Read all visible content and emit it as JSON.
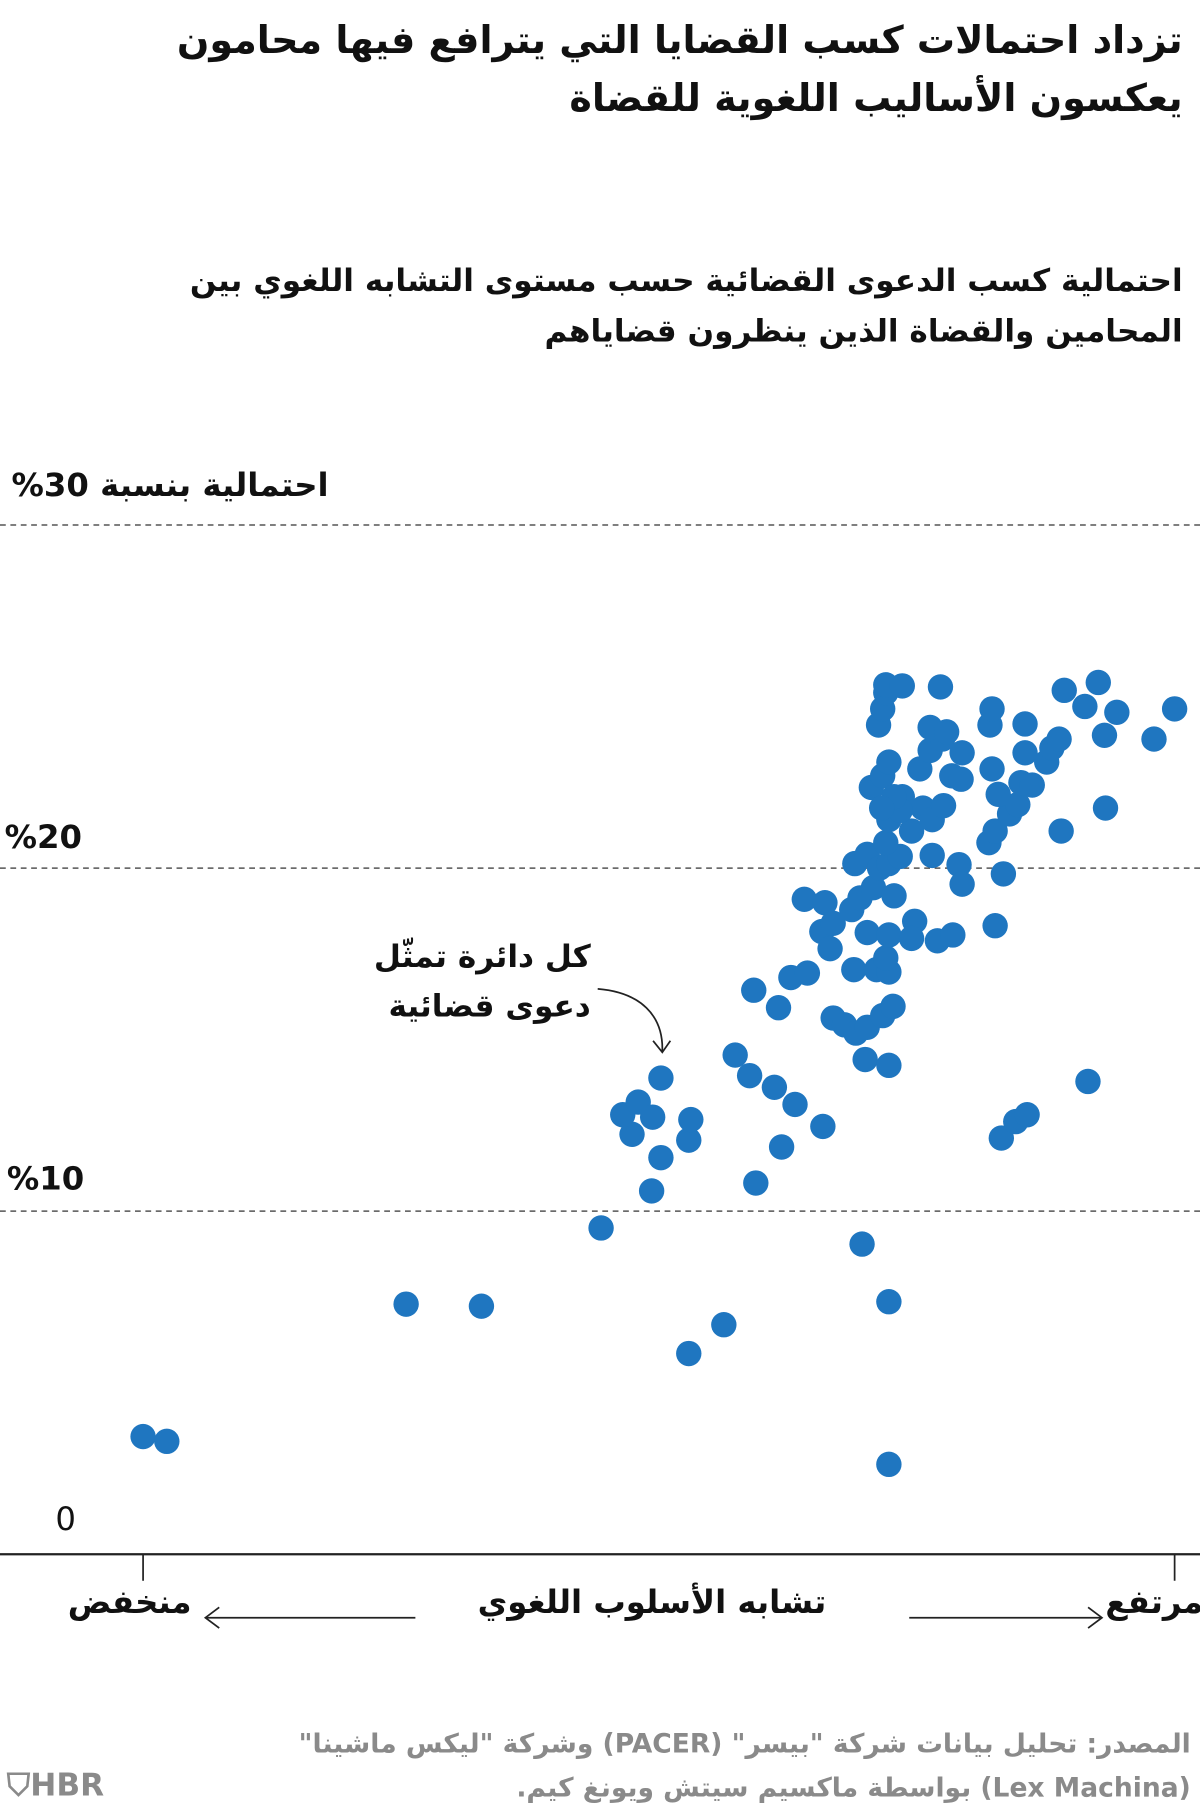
{
  "title": "تزداد احتمالات كسب القضايا التي يترافع فيها محامون يعكسون الأساليب اللغوية للقضاة",
  "subtitle": "احتمالية كسب الدعوى القضائية حسب مستوى التشابه اللغوي بين المحامين والقضاة الذين ينظرون قضاياهم",
  "annotation": {
    "line1": "كل دائرة تمثّل",
    "line2": "دعوى قضائية"
  },
  "source": {
    "line1": "المصدر: تحليل بيانات شركة \"بيسر\" (PACER) وشركة \"ليكس ماشينا\"",
    "line2": "(Lex Machina) بواسطة ماكسيم سيتش ويونغ كيم."
  },
  "logo": "HBR",
  "colors": {
    "dots": "#1f76c0",
    "text": "#111111",
    "source": "#8a8a8a",
    "grid": "#555555"
  },
  "chart_data": {
    "type": "scatter",
    "title": "",
    "ylabel": "احتمالية بنسبة 30%",
    "xlabel": "تشابه الأسلوب اللغوي",
    "x_low_label": "منخفض",
    "x_high_label": "مرتفع",
    "ylim": [
      0,
      30
    ],
    "yticks": [
      {
        "value": 10,
        "label": "%10"
      },
      {
        "value": 20,
        "label": "%20"
      },
      {
        "value": 0,
        "label": "0"
      }
    ],
    "xlim": [
      0,
      100
    ],
    "grid": "horizontal dashed",
    "points": [
      [
        0,
        3.43
      ],
      [
        2.3,
        3.29
      ],
      [
        25.5,
        7.29
      ],
      [
        32.8,
        7.23
      ],
      [
        44.4,
        9.51
      ],
      [
        52.9,
        5.85
      ],
      [
        56.3,
        6.69
      ],
      [
        72.3,
        2.62
      ],
      [
        72.3,
        7.36
      ],
      [
        69.7,
        9.04
      ],
      [
        49.3,
        10.59
      ],
      [
        50.2,
        11.56
      ],
      [
        47.4,
        12.24
      ],
      [
        46.5,
        12.81
      ],
      [
        48.0,
        13.18
      ],
      [
        49.4,
        12.74
      ],
      [
        52.9,
        12.07
      ],
      [
        53.1,
        12.67
      ],
      [
        50.2,
        13.88
      ],
      [
        59.4,
        10.82
      ],
      [
        61.9,
        11.87
      ],
      [
        65.9,
        12.47
      ],
      [
        63.2,
        13.11
      ],
      [
        61.2,
        13.61
      ],
      [
        58.8,
        13.95
      ],
      [
        57.4,
        14.55
      ],
      [
        83.2,
        12.13
      ],
      [
        84.6,
        12.61
      ],
      [
        85.7,
        12.81
      ],
      [
        91.6,
        13.78
      ],
      [
        59.2,
        16.44
      ],
      [
        61.6,
        15.93
      ],
      [
        62.8,
        16.81
      ],
      [
        64.4,
        16.94
      ],
      [
        66.9,
        15.63
      ],
      [
        68.0,
        15.43
      ],
      [
        69.1,
        15.19
      ],
      [
        70.2,
        15.36
      ],
      [
        71.7,
        15.7
      ],
      [
        72.7,
        15.97
      ],
      [
        70.0,
        14.42
      ],
      [
        72.3,
        14.25
      ],
      [
        64.1,
        19.09
      ],
      [
        66.1,
        18.99
      ],
      [
        65.8,
        18.15
      ],
      [
        66.6,
        17.65
      ],
      [
        66.9,
        18.39
      ],
      [
        68.9,
        17.04
      ],
      [
        71.1,
        17.04
      ],
      [
        72.3,
        16.97
      ],
      [
        72.0,
        17.38
      ],
      [
        68.7,
        18.79
      ],
      [
        69.5,
        19.13
      ],
      [
        70.8,
        19.43
      ],
      [
        70.2,
        18.12
      ],
      [
        72.3,
        18.05
      ],
      [
        72.8,
        19.19
      ],
      [
        74.8,
        18.45
      ],
      [
        74.5,
        17.95
      ],
      [
        77.0,
        17.88
      ],
      [
        78.5,
        18.05
      ],
      [
        82.6,
        18.32
      ],
      [
        69.0,
        20.13
      ],
      [
        70.2,
        20.4
      ],
      [
        71.4,
        20.0
      ],
      [
        72.3,
        20.13
      ],
      [
        73.4,
        20.34
      ],
      [
        72.0,
        20.74
      ],
      [
        74.5,
        21.08
      ],
      [
        76.5,
        20.37
      ],
      [
        79.1,
        20.1
      ],
      [
        79.4,
        19.53
      ],
      [
        83.4,
        19.83
      ],
      [
        82.0,
        20.74
      ],
      [
        82.6,
        21.08
      ],
      [
        84.0,
        21.58
      ],
      [
        84.8,
        21.85
      ],
      [
        89.0,
        21.08
      ],
      [
        93.3,
        21.75
      ],
      [
        70.6,
        22.35
      ],
      [
        71.7,
        22.69
      ],
      [
        72.3,
        23.09
      ],
      [
        73.6,
        22.08
      ],
      [
        75.6,
        21.75
      ],
      [
        76.5,
        21.41
      ],
      [
        77.6,
        21.82
      ],
      [
        75.3,
        22.89
      ],
      [
        76.3,
        23.43
      ],
      [
        77.5,
        23.76
      ],
      [
        78.4,
        22.69
      ],
      [
        79.4,
        23.36
      ],
      [
        79.3,
        22.59
      ],
      [
        82.3,
        22.89
      ],
      [
        82.9,
        22.15
      ],
      [
        85.5,
        23.36
      ],
      [
        85.1,
        22.49
      ],
      [
        86.2,
        22.42
      ],
      [
        87.6,
        23.09
      ],
      [
        88.1,
        23.5
      ],
      [
        88.8,
        23.76
      ],
      [
        82.1,
        24.17
      ],
      [
        82.3,
        24.64
      ],
      [
        85.5,
        24.2
      ],
      [
        71.3,
        24.17
      ],
      [
        71.7,
        24.64
      ],
      [
        72.0,
        25.11
      ],
      [
        72.0,
        25.34
      ],
      [
        73.6,
        25.31
      ],
      [
        77.3,
        25.28
      ],
      [
        76.3,
        24.1
      ],
      [
        77.9,
        23.97
      ],
      [
        89.3,
        25.18
      ],
      [
        91.3,
        24.71
      ],
      [
        92.6,
        25.41
      ],
      [
        94.4,
        24.54
      ],
      [
        93.2,
        23.87
      ],
      [
        98.0,
        23.76
      ],
      [
        100,
        24.64
      ],
      [
        72.3,
        21.41
      ],
      [
        73.4,
        21.68
      ],
      [
        72.8,
        22.08
      ],
      [
        71.6,
        21.75
      ]
    ]
  }
}
